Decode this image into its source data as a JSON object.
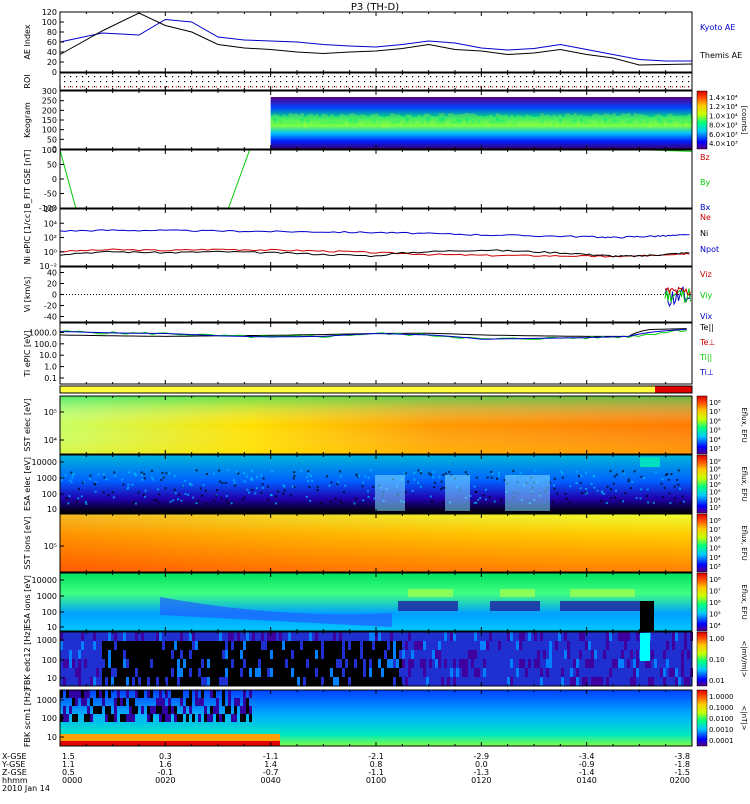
{
  "title": "P3 (TH-D)",
  "x_axis": {
    "row_labels": [
      "X-GSE",
      "Y-GSE",
      "Z-GSE",
      "hhmm",
      "2010 Jan 14"
    ],
    "ticks": [
      {
        "x": "1.5",
        "y": "1.1",
        "z": "0.5",
        "t": "0000"
      },
      {
        "x": "0.3",
        "y": "1.6",
        "z": "-0.1",
        "t": "0020"
      },
      {
        "x": "-1.1",
        "y": "1.4",
        "z": "-0.7",
        "t": "0040"
      },
      {
        "x": "-2.1",
        "y": "0.8",
        "z": "-1.1",
        "t": "0100"
      },
      {
        "x": "-2.9",
        "y": "0.0",
        "z": "-1.3",
        "t": "0120"
      },
      {
        "x": "-3.4",
        "y": "-0.9",
        "z": "-1.4",
        "t": "0140"
      },
      {
        "x": "-3.8",
        "y": "-1.8",
        "z": "-1.5",
        "t": "0200"
      }
    ]
  },
  "colors": {
    "blue": "#0000cc",
    "black": "#000000",
    "red": "#cc0000",
    "green": "#00cc00"
  },
  "chart_data": [
    {
      "type": "line",
      "id": "ae",
      "ylabel": "AE Index",
      "ylim": [
        0,
        120
      ],
      "yticks": [
        "120",
        "100",
        "80",
        "60",
        "40",
        "20",
        "0"
      ],
      "x_minutes": [
        0,
        8,
        15,
        20,
        25,
        30,
        35,
        40,
        45,
        50,
        55,
        60,
        65,
        70,
        75,
        80,
        85,
        90,
        95,
        100,
        105,
        110,
        115,
        120
      ],
      "series": [
        {
          "name": "Kyoto AE",
          "color": "#0000cc",
          "values": [
            60,
            78,
            74,
            105,
            100,
            70,
            64,
            62,
            60,
            55,
            52,
            50,
            55,
            62,
            58,
            48,
            44,
            47,
            55,
            45,
            35,
            25,
            22,
            22
          ]
        },
        {
          "name": "Themis AE",
          "color": "#000000",
          "values": [
            35,
            82,
            118,
            93,
            80,
            55,
            48,
            45,
            40,
            37,
            40,
            42,
            47,
            55,
            45,
            42,
            35,
            38,
            45,
            35,
            28,
            14,
            15,
            16
          ]
        }
      ]
    },
    {
      "type": "heatmap",
      "id": "roi",
      "ylabel": "ROI"
    },
    {
      "type": "heatmap",
      "id": "keogram",
      "ylabel": "Keogram",
      "ylim": [
        0,
        300
      ],
      "yticks": [
        "300",
        "250",
        "200",
        "150",
        "100",
        "50",
        "0"
      ],
      "start_minute": 40,
      "colorbar": {
        "label": "[counts]",
        "ticks": [
          "1.4×10⁴",
          "1.2×10⁴",
          "1.0×10⁴",
          "8.0×10³",
          "6.0×10³",
          "4.0×10³"
        ]
      }
    },
    {
      "type": "line",
      "id": "bfield",
      "ylabel": "B_FIT GSE [nT]",
      "ylim": [
        -100,
        100
      ],
      "yticks": [
        "100",
        "50",
        "0",
        "-50",
        "-100"
      ],
      "series": [
        {
          "name": "Bz",
          "color": "#cc0000"
        },
        {
          "name": "By",
          "color": "#00cc00",
          "x_minutes": [
            0,
            3,
            32,
            36,
            112,
            120
          ],
          "values": [
            100,
            -100,
            -100,
            100,
            100,
            95
          ]
        },
        {
          "name": "Bx",
          "color": "#0000cc"
        }
      ]
    },
    {
      "type": "line",
      "id": "density",
      "ylabel": "Ni ePIC [1/cc]",
      "log": true,
      "yticks": [
        "10⁶",
        "10⁴",
        "10²",
        "10⁰",
        "10⁻²"
      ],
      "x_minutes": [
        0,
        10,
        20,
        30,
        40,
        50,
        60,
        70,
        80,
        90,
        100,
        105,
        110,
        115,
        120
      ],
      "series": [
        {
          "name": "Ne",
          "color": "#cc0000",
          "values": [
            0.3,
            0.7,
            0.5,
            0.8,
            0.6,
            0.4,
            0.2,
            0.1,
            0.07,
            0.06,
            0.05,
            0.04,
            0.05,
            0.1,
            0.15
          ]
        },
        {
          "name": "Ni",
          "color": "#000000",
          "values": [
            0.1,
            0.3,
            0.2,
            0.3,
            0.2,
            0.1,
            0.05,
            0.3,
            0.6,
            0.3,
            0.1,
            0.05,
            0.05,
            0.1,
            0.2
          ]
        },
        {
          "name": "Npot",
          "color": "#0000cc",
          "values": [
            1500,
            2000,
            1800,
            1500,
            1200,
            1000,
            800,
            500,
            300,
            200,
            150,
            100,
            150,
            200,
            300
          ]
        }
      ]
    },
    {
      "type": "line",
      "id": "velocity",
      "ylabel": "Vi [km/s]",
      "ylim": [
        -50,
        50
      ],
      "yticks": [
        "40",
        "20",
        "0",
        "-20",
        "-40"
      ],
      "series": [
        {
          "name": "Viz",
          "color": "#cc0000"
        },
        {
          "name": "Viy",
          "color": "#00cc00"
        },
        {
          "name": "Vix",
          "color": "#0000cc"
        }
      ]
    },
    {
      "type": "line",
      "id": "temperature",
      "ylabel": "Ti ePIC [eV]",
      "log": true,
      "yticks": [
        "1000.0",
        "100.0",
        "10.0",
        "1.0",
        "0.1"
      ],
      "x_minutes": [
        0,
        10,
        20,
        30,
        40,
        50,
        60,
        70,
        80,
        90,
        100,
        108,
        112,
        120
      ],
      "series": [
        {
          "name": "Te||",
          "color": "#000000",
          "values": [
            600,
            500,
            450,
            500,
            550,
            650,
            800,
            850,
            600,
            500,
            450,
            450,
            1800,
            2200
          ]
        },
        {
          "name": "Te⊥",
          "color": "#cc0000"
        },
        {
          "name": "Ti||",
          "color": "#00cc00",
          "values": [
            1200,
            900,
            800,
            500,
            400,
            450,
            800,
            600,
            250,
            300,
            350,
            450,
            700,
            1800
          ]
        },
        {
          "name": "Ti⊥",
          "color": "#0000cc",
          "values": [
            1200,
            900,
            800,
            500,
            400,
            450,
            800,
            600,
            250,
            300,
            350,
            450,
            1000,
            2000
          ]
        }
      ]
    },
    {
      "type": "heatmap",
      "id": "sst_e",
      "ylabel": "SST elec [eV]",
      "yticks": [
        "10⁵",
        "10⁴"
      ],
      "colorbar": {
        "label": "Eflux, EFU",
        "ticks": [
          "10⁸",
          "10⁷",
          "10⁶",
          "10⁵",
          "10⁴",
          "10³"
        ]
      }
    },
    {
      "type": "heatmap",
      "id": "esa_e",
      "ylabel": "ESA elec [eV]",
      "yticks": [
        "10000",
        "1000",
        "100",
        "10"
      ],
      "colorbar": {
        "label": "Eflux, EFU",
        "ticks": [
          "10⁹",
          "10⁸",
          "10⁷",
          "10⁶",
          "10⁵",
          "10⁴",
          "10³"
        ]
      }
    },
    {
      "type": "heatmap",
      "id": "sst_i",
      "ylabel": "SST ions [eV]",
      "yticks": [
        "10⁵"
      ],
      "colorbar": {
        "label": "Eflux, EFU",
        "ticks": [
          "10⁸",
          "10⁷",
          "10⁶",
          "10⁵",
          "10⁴",
          "10³"
        ]
      }
    },
    {
      "type": "heatmap",
      "id": "esa_i",
      "ylabel": "ESA ions [eV]",
      "yticks": [
        "10000",
        "1000",
        "100",
        "10"
      ],
      "colorbar": {
        "label": "Eflux, EFU",
        "ticks": [
          "10⁸",
          "10⁷",
          "10⁶",
          "10⁵",
          "10⁴"
        ]
      }
    },
    {
      "type": "heatmap",
      "id": "fbk_b",
      "ylabel": "FBK edc12 [Hz]",
      "yticks": [
        "1000",
        "100",
        "10"
      ],
      "colorbar": {
        "label": "<|mV/m|>",
        "ticks": [
          "1.00",
          "0.10",
          "0.01"
        ]
      }
    },
    {
      "type": "heatmap",
      "id": "fbk_s",
      "ylabel": "FBK scm1 [Hz]",
      "yticks": [
        "1000",
        "100",
        "10"
      ],
      "colorbar": {
        "label": "<|nT|>",
        "ticks": [
          "1.0000",
          "0.1000",
          "0.0100",
          "0.0010",
          "0.0001"
        ]
      }
    }
  ]
}
